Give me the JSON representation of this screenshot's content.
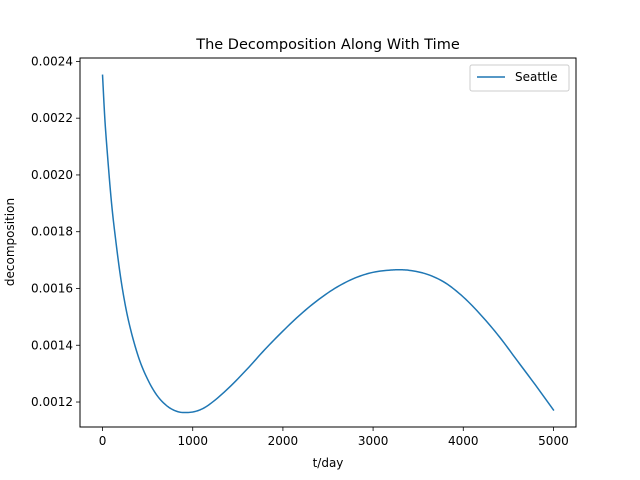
{
  "chart_data": {
    "type": "line",
    "title": "The Decomposition Along With Time",
    "xlabel": "t/day",
    "ylabel": "decomposition",
    "xlim": [
      -250,
      5250
    ],
    "ylim": [
      0.001112,
      0.002412
    ],
    "x_ticks": [
      0,
      1000,
      2000,
      3000,
      4000,
      5000
    ],
    "x_tick_labels": [
      "0",
      "1000",
      "2000",
      "3000",
      "4000",
      "5000"
    ],
    "y_ticks": [
      0.0012,
      0.0014,
      0.0016,
      0.0018,
      0.002,
      0.0022,
      0.0024
    ],
    "y_tick_labels": [
      "0.0012",
      "0.0014",
      "0.0016",
      "0.0018",
      "0.0020",
      "0.0022",
      "0.0024"
    ],
    "grid": false,
    "legend_position": "top-right",
    "series": [
      {
        "name": "Seattle",
        "color": "#1f77b4",
        "x": [
          0,
          25,
          50,
          100,
          150,
          200,
          250,
          300,
          400,
          500,
          600,
          700,
          800,
          900,
          1000,
          1100,
          1200,
          1400,
          1600,
          1800,
          2000,
          2200,
          2400,
          2600,
          2800,
          3000,
          3200,
          3300,
          3400,
          3600,
          3800,
          4000,
          4200,
          4400,
          4600,
          4800,
          5000
        ],
        "values": [
          0.002351,
          0.0022,
          0.00209,
          0.0019,
          0.00176,
          0.00164,
          0.001545,
          0.00147,
          0.001357,
          0.00128,
          0.001225,
          0.00119,
          0.00117,
          0.001163,
          0.001165,
          0.001175,
          0.001195,
          0.00125,
          0.001315,
          0.001385,
          0.00145,
          0.00151,
          0.001562,
          0.001605,
          0.001637,
          0.001657,
          0.001665,
          0.001666,
          0.001664,
          0.00165,
          0.00162,
          0.00157,
          0.001505,
          0.00143,
          0.001345,
          0.00126,
          0.001172
        ]
      }
    ]
  }
}
